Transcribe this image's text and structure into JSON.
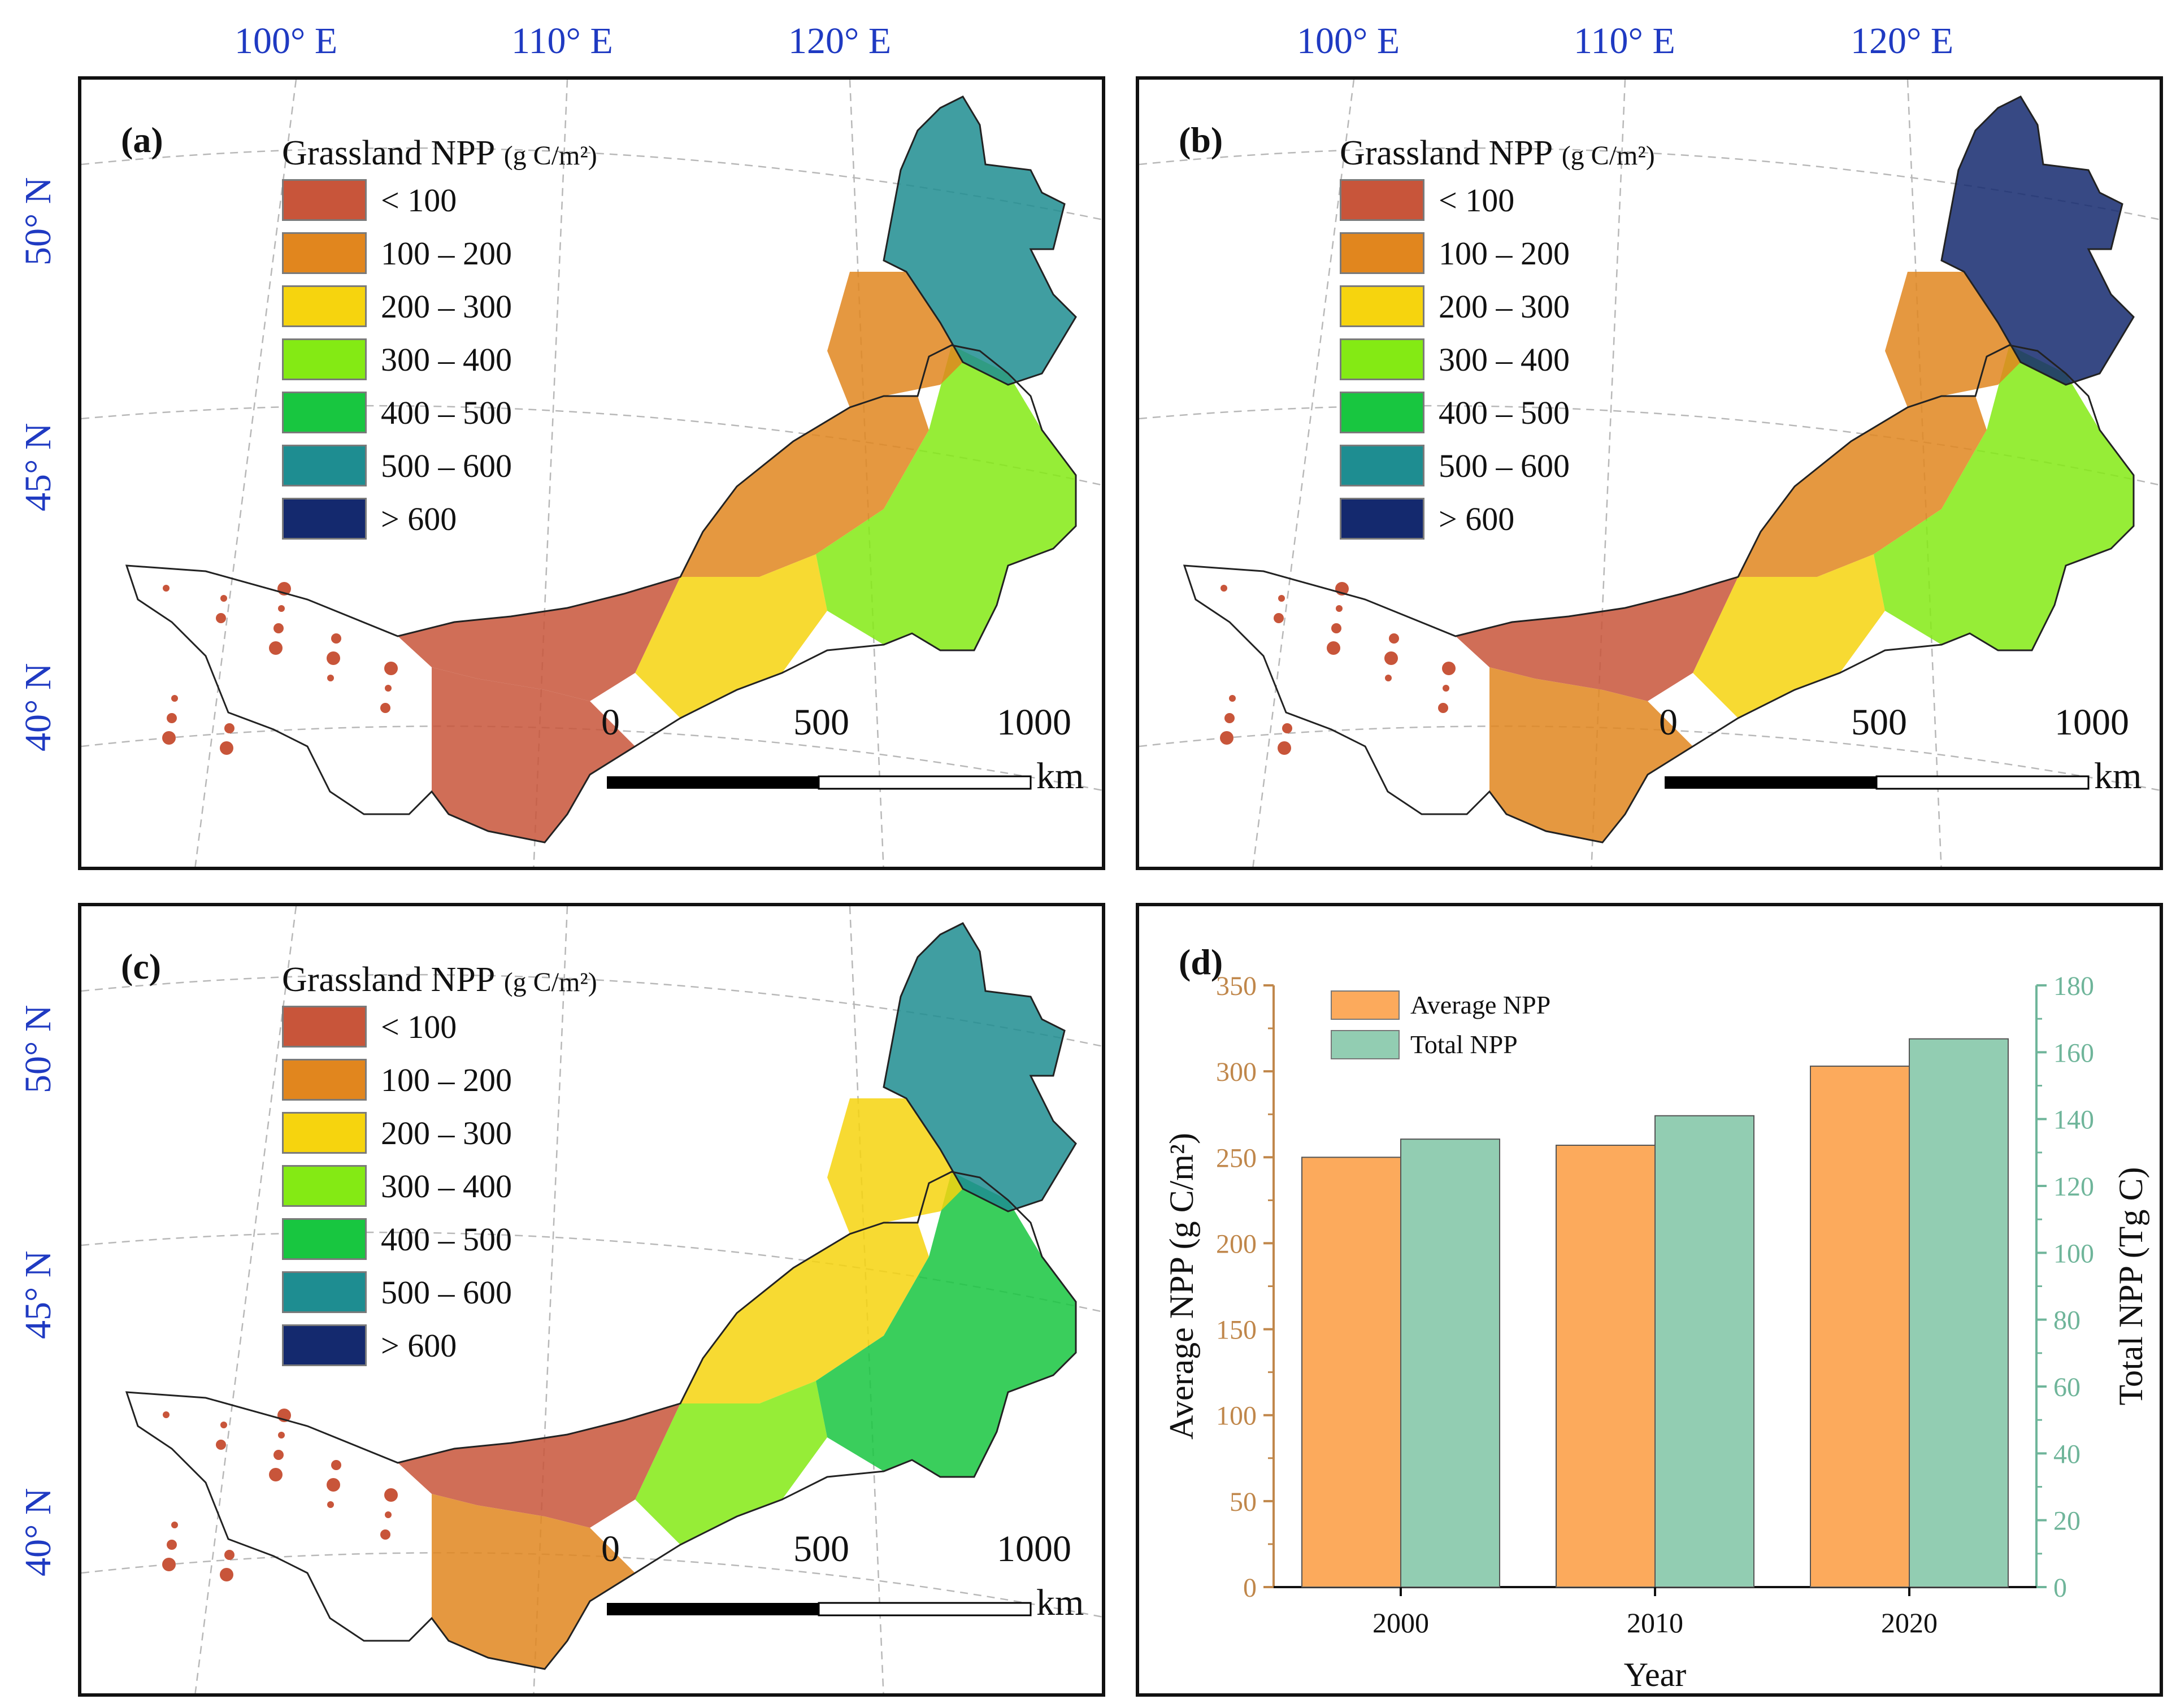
{
  "maps": {
    "lon_labels": [
      "100° E",
      "110° E",
      "120° E"
    ],
    "lat_labels": [
      "50° N",
      "45° N",
      "40° N"
    ],
    "legend_title": "Grassland NPP",
    "legend_unit": "(g C/m²)",
    "legend_items": [
      {
        "label": "< 100",
        "color": "#c8553a"
      },
      {
        "label": "100 – 200",
        "color": "#e1861e"
      },
      {
        "label": "200 – 300",
        "color": "#f6d40e"
      },
      {
        "label": "300 – 400",
        "color": "#84ea14"
      },
      {
        "label": "400 – 500",
        "color": "#18c640"
      },
      {
        "label": "500 – 600",
        "color": "#1e8d91"
      },
      {
        "label": "> 600",
        "color": "#14296e"
      }
    ],
    "scale_ticks": [
      "0",
      "500",
      "1000"
    ],
    "scale_unit": "km",
    "panels": [
      {
        "label": "(a)"
      },
      {
        "label": "(b)"
      },
      {
        "label": "(c)"
      }
    ]
  },
  "chart_data": {
    "type": "bar",
    "panel_label": "(d)",
    "categories": [
      "2000",
      "2010",
      "2020"
    ],
    "series": [
      {
        "name": "Average NPP",
        "axis": "left",
        "color": "#fcaa5c",
        "values": [
          250,
          257,
          303
        ]
      },
      {
        "name": "Total NPP",
        "axis": "right",
        "color": "#92cdb2",
        "values": [
          134,
          141,
          164
        ]
      }
    ],
    "xlabel": "Year",
    "ylabel_left": "Average NPP (g C/m²)",
    "ylabel_right": "Total NPP (Tg C)",
    "ylim_left": [
      0,
      350
    ],
    "yticks_left": [
      "0",
      "50",
      "100",
      "150",
      "200",
      "250",
      "300",
      "350"
    ],
    "ylim_right": [
      0,
      180
    ],
    "yticks_right": [
      "0",
      "20",
      "40",
      "60",
      "80",
      "100",
      "120",
      "140",
      "160",
      "180"
    ],
    "left_axis_color": "#c0874b",
    "right_axis_color": "#6fb59a",
    "legend_position": "top-left"
  }
}
